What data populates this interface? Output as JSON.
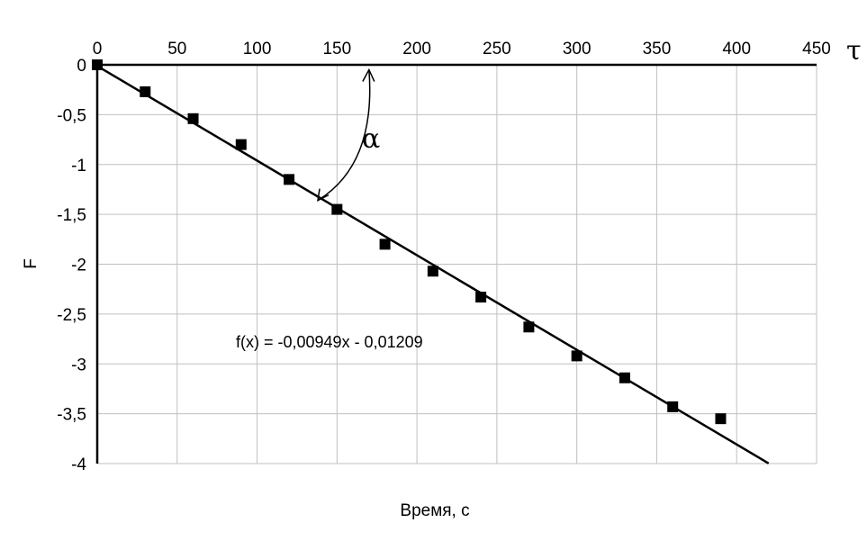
{
  "chart_data": {
    "type": "scatter",
    "title": "",
    "xlabel": "Время, с",
    "ylabel": "F",
    "xlim": [
      0,
      450
    ],
    "ylim": [
      -4,
      0
    ],
    "x_ticks": [
      0,
      50,
      100,
      150,
      200,
      250,
      300,
      350,
      400,
      450
    ],
    "y_ticks": [
      0,
      -0.5,
      -1,
      -1.5,
      -2,
      -2.5,
      -3,
      -3.5,
      -4
    ],
    "x_tick_labels": [
      "0",
      "50",
      "100",
      "150",
      "200",
      "250",
      "300",
      "350",
      "400",
      "450"
    ],
    "y_tick_labels": [
      "0",
      "-0,5",
      "-1",
      "-1,5",
      "-2",
      "-2,5",
      "-3",
      "-3,5",
      "-4"
    ],
    "x_axis_position": "top",
    "grid": true,
    "series": [
      {
        "marker": "square",
        "x": [
          0,
          30,
          60,
          90,
          120,
          150,
          180,
          210,
          240,
          270,
          300,
          330,
          360,
          390
        ],
        "y": [
          0,
          -0.27,
          -0.54,
          -0.8,
          -1.15,
          -1.45,
          -1.8,
          -2.07,
          -2.33,
          -2.63,
          -2.92,
          -3.14,
          -3.43,
          -3.55
        ]
      }
    ],
    "trendline": {
      "slope": -0.00949,
      "intercept": -0.01209,
      "x_range": [
        0,
        420
      ],
      "equation_label": "f(x) = -0,00949x - 0,01209"
    },
    "annotations": {
      "axis_symbol": "τ",
      "angle_symbol": "α"
    }
  }
}
